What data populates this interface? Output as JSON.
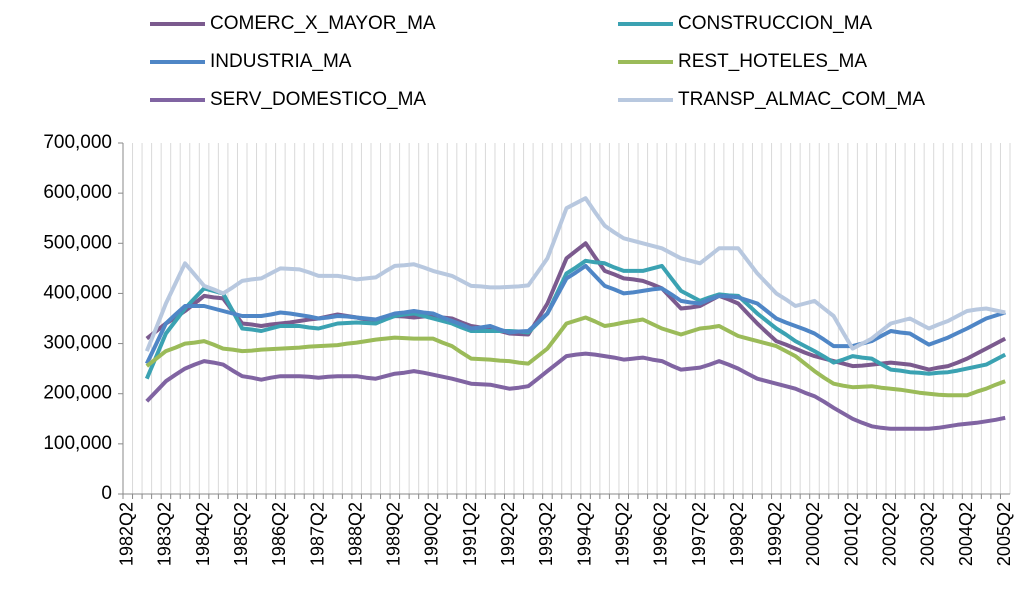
{
  "chart_data": {
    "type": "line",
    "categories": [
      "1982Q2",
      null,
      null,
      null,
      "1983Q2",
      null,
      null,
      null,
      "1984Q2",
      null,
      null,
      null,
      "1985Q2",
      null,
      null,
      null,
      "1986Q2",
      null,
      null,
      null,
      "1987Q2",
      null,
      null,
      null,
      "1988Q2",
      null,
      null,
      null,
      "1989Q2",
      null,
      null,
      null,
      "1990Q2",
      null,
      null,
      null,
      "1991Q2",
      null,
      null,
      null,
      "1992Q2",
      null,
      null,
      null,
      "1993Q2",
      null,
      null,
      null,
      "1994Q2",
      null,
      null,
      null,
      "1995Q2",
      null,
      null,
      null,
      "1996Q2",
      null,
      null,
      null,
      "1997Q2",
      null,
      null,
      null,
      "1998Q2",
      null,
      null,
      null,
      "1999Q2",
      null,
      null,
      null,
      "2000Q2",
      null,
      null,
      null,
      "2001Q2",
      null,
      null,
      null,
      "2002Q2",
      null,
      null,
      null,
      "2003Q2",
      null,
      null,
      null,
      "2004Q2",
      null,
      null,
      null,
      "2005Q2"
    ],
    "series": [
      {
        "name": "COMERC_X_MAYOR_MA",
        "color": "#7b5a8e",
        "values": [
          null,
          null,
          310000,
          325000,
          340000,
          352000,
          365000,
          380000,
          395000,
          392000,
          390000,
          365000,
          340000,
          338000,
          335000,
          338000,
          340000,
          342000,
          345000,
          348000,
          350000,
          354000,
          358000,
          355000,
          352000,
          348000,
          345000,
          350000,
          355000,
          354000,
          352000,
          354000,
          355000,
          352000,
          350000,
          342000,
          335000,
          332000,
          330000,
          325000,
          320000,
          319000,
          318000,
          349000,
          380000,
          425000,
          470000,
          485000,
          500000,
          472000,
          445000,
          438000,
          430000,
          428000,
          425000,
          418000,
          410000,
          390000,
          370000,
          372000,
          375000,
          385000,
          395000,
          388000,
          380000,
          360000,
          340000,
          322000,
          305000,
          298000,
          290000,
          282000,
          275000,
          270000,
          265000,
          260000,
          255000,
          256000,
          258000,
          260000,
          262000,
          260000,
          258000,
          253000,
          248000,
          252000,
          255000,
          262000,
          270000,
          280000,
          290000,
          300000,
          310000
        ]
      },
      {
        "name": "CONSTRUCCION_MA",
        "color": "#3ba2b2",
        "values": [
          null,
          null,
          230000,
          275000,
          320000,
          345000,
          370000,
          390000,
          410000,
          405000,
          400000,
          365000,
          330000,
          328000,
          325000,
          330000,
          335000,
          335000,
          335000,
          332000,
          330000,
          335000,
          340000,
          341000,
          342000,
          341000,
          340000,
          348000,
          355000,
          358000,
          360000,
          355000,
          350000,
          345000,
          340000,
          332000,
          325000,
          325000,
          325000,
          325000,
          325000,
          324000,
          322000,
          341000,
          360000,
          400000,
          440000,
          452000,
          465000,
          462000,
          460000,
          452000,
          445000,
          445000,
          445000,
          450000,
          455000,
          430000,
          405000,
          395000,
          385000,
          392000,
          398000,
          396000,
          395000,
          378000,
          360000,
          345000,
          330000,
          318000,
          305000,
          295000,
          285000,
          274000,
          262000,
          268000,
          275000,
          272000,
          270000,
          259000,
          248000,
          246000,
          243000,
          242000,
          240000,
          242000,
          243000,
          246000,
          250000,
          254000,
          258000,
          268000,
          278000
        ]
      },
      {
        "name": "INDUSTRIA_MA",
        "color": "#4f86c6",
        "values": [
          null,
          null,
          260000,
          300000,
          340000,
          358000,
          375000,
          375000,
          375000,
          370000,
          365000,
          360000,
          355000,
          355000,
          355000,
          358000,
          362000,
          360000,
          357000,
          354000,
          350000,
          352000,
          355000,
          354000,
          352000,
          350000,
          348000,
          354000,
          360000,
          362000,
          365000,
          362000,
          360000,
          352000,
          345000,
          338000,
          330000,
          332000,
          335000,
          328000,
          322000,
          324000,
          325000,
          342000,
          360000,
          395000,
          430000,
          442000,
          455000,
          435000,
          415000,
          408000,
          400000,
          402000,
          405000,
          408000,
          410000,
          398000,
          385000,
          382000,
          380000,
          388000,
          395000,
          394000,
          392000,
          386000,
          380000,
          365000,
          350000,
          342000,
          335000,
          328000,
          320000,
          308000,
          295000,
          295000,
          295000,
          300000,
          305000,
          315000,
          325000,
          322000,
          320000,
          309000,
          298000,
          305000,
          312000,
          321000,
          330000,
          340000,
          350000,
          356000,
          362000
        ]
      },
      {
        "name": "REST_HOTELES_MA",
        "color": "#9bbb59",
        "values": [
          null,
          null,
          255000,
          270000,
          285000,
          292000,
          300000,
          302000,
          305000,
          298000,
          290000,
          288000,
          285000,
          286000,
          288000,
          289000,
          290000,
          291000,
          292000,
          294000,
          295000,
          296000,
          297000,
          300000,
          302000,
          305000,
          308000,
          310000,
          312000,
          311000,
          310000,
          310000,
          310000,
          302000,
          295000,
          282000,
          270000,
          269000,
          268000,
          266000,
          265000,
          262000,
          260000,
          275000,
          290000,
          315000,
          340000,
          346000,
          352000,
          344000,
          335000,
          338000,
          342000,
          345000,
          348000,
          339000,
          330000,
          324000,
          318000,
          324000,
          330000,
          332000,
          335000,
          325000,
          315000,
          310000,
          305000,
          300000,
          295000,
          285000,
          275000,
          260000,
          245000,
          232000,
          220000,
          216000,
          213000,
          214000,
          215000,
          212000,
          210000,
          208000,
          205000,
          202000,
          200000,
          198000,
          197000,
          197000,
          197000,
          204000,
          210000,
          218000,
          225000
        ]
      },
      {
        "name": "SERV_DOMESTICO_MA",
        "color": "#8064a2",
        "values": [
          null,
          null,
          185000,
          205000,
          225000,
          238000,
          250000,
          258000,
          265000,
          262000,
          258000,
          246000,
          235000,
          232000,
          228000,
          232000,
          235000,
          235000,
          235000,
          234000,
          232000,
          234000,
          235000,
          235000,
          235000,
          232000,
          230000,
          235000,
          240000,
          242000,
          245000,
          242000,
          238000,
          234000,
          230000,
          225000,
          220000,
          219000,
          218000,
          214000,
          210000,
          212000,
          215000,
          230000,
          245000,
          260000,
          275000,
          278000,
          280000,
          278000,
          275000,
          272000,
          268000,
          270000,
          272000,
          268000,
          265000,
          256000,
          248000,
          250000,
          252000,
          258000,
          265000,
          258000,
          250000,
          240000,
          230000,
          225000,
          220000,
          215000,
          210000,
          202000,
          195000,
          184000,
          172000,
          161000,
          150000,
          142000,
          135000,
          132000,
          130000,
          130000,
          130000,
          130000,
          130000,
          132000,
          135000,
          138000,
          140000,
          142000,
          145000,
          148000,
          152000
        ]
      },
      {
        "name": "TRANSP_ALMAC_COM_MA",
        "color": "#b8c8df",
        "values": [
          null,
          null,
          285000,
          332000,
          380000,
          420000,
          460000,
          438000,
          415000,
          408000,
          400000,
          412000,
          425000,
          428000,
          430000,
          440000,
          450000,
          449000,
          448000,
          442000,
          435000,
          435000,
          435000,
          432000,
          428000,
          430000,
          432000,
          444000,
          455000,
          456000,
          458000,
          452000,
          445000,
          440000,
          435000,
          425000,
          415000,
          414000,
          412000,
          412000,
          413000,
          414000,
          416000,
          443000,
          470000,
          520000,
          570000,
          580000,
          590000,
          562000,
          535000,
          522000,
          510000,
          505000,
          500000,
          495000,
          490000,
          480000,
          470000,
          465000,
          460000,
          475000,
          490000,
          490000,
          490000,
          465000,
          440000,
          420000,
          400000,
          388000,
          375000,
          380000,
          385000,
          370000,
          355000,
          322000,
          290000,
          300000,
          310000,
          325000,
          340000,
          345000,
          350000,
          340000,
          330000,
          338000,
          345000,
          355000,
          365000,
          368000,
          370000,
          366000,
          362000
        ]
      }
    ],
    "ylim": [
      0,
      700000
    ],
    "yticks": [
      0,
      {
        "value": 100000,
        "label": "100,000"
      },
      {
        "value": 200000,
        "label": "200,000"
      },
      {
        "value": 300000,
        "label": "300,000"
      },
      {
        "value": 400000,
        "label": "400,000"
      },
      {
        "value": 500000,
        "label": "500,000"
      },
      {
        "value": 600000,
        "label": "600,000"
      },
      {
        "value": 700000,
        "label": "700,000"
      }
    ],
    "legend": "top"
  }
}
